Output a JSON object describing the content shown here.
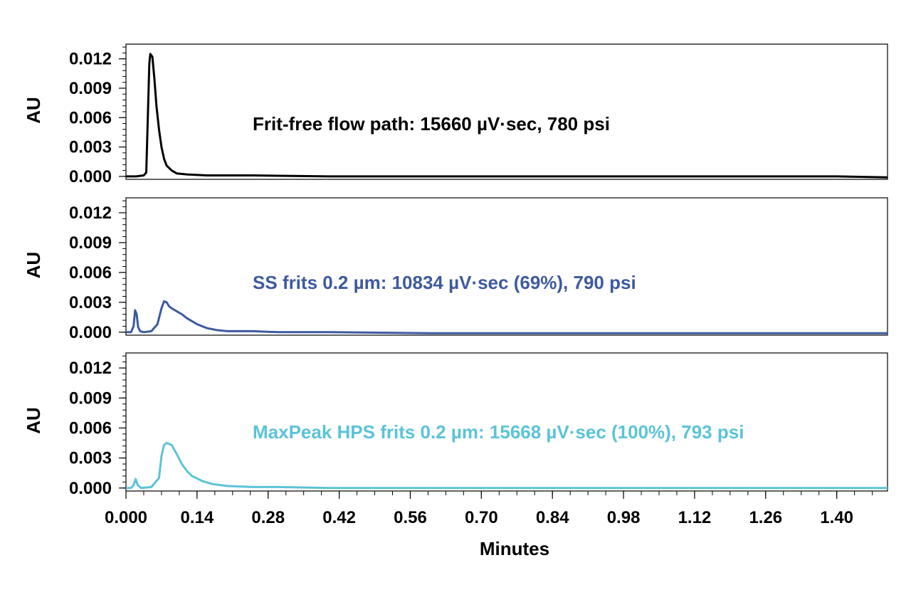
{
  "chart_data": {
    "type": "line",
    "xlabel": "Minutes",
    "xlim": [
      0.0,
      1.5
    ],
    "x_ticks": [
      "0.000",
      "0.14",
      "0.28",
      "0.42",
      "0.56",
      "0.70",
      "0.84",
      "0.98",
      "1.12",
      "1.26",
      "1.40"
    ],
    "x_tick_values": [
      0.0,
      0.14,
      0.28,
      0.42,
      0.56,
      0.7,
      0.84,
      0.98,
      1.12,
      1.26,
      1.4
    ],
    "panels": [
      {
        "ylabel": "AU",
        "ylim": [
          -0.0003,
          0.0135
        ],
        "y_ticks": [
          "0.012",
          "0.009",
          "0.006",
          "0.003",
          "0.000"
        ],
        "y_tick_values": [
          0.012,
          0.009,
          0.006,
          0.003,
          0.0
        ],
        "annotation": "Frit-free flow path: 15660 µV·sec, 780 psi",
        "color": "#000000",
        "x": [
          0.0,
          0.02,
          0.035,
          0.04,
          0.043,
          0.046,
          0.048,
          0.052,
          0.056,
          0.06,
          0.065,
          0.07,
          0.075,
          0.08,
          0.09,
          0.1,
          0.12,
          0.16,
          0.25,
          0.4,
          0.6,
          0.8,
          1.0,
          1.2,
          1.4,
          1.5
        ],
        "y": [
          0.0,
          0.0,
          0.0001,
          0.0004,
          0.006,
          0.0115,
          0.0125,
          0.0122,
          0.01,
          0.0072,
          0.0048,
          0.003,
          0.0018,
          0.0011,
          0.0006,
          0.0003,
          0.0002,
          0.0001,
          0.0001,
          0.0,
          0.0,
          0.0,
          0.0,
          0.0,
          0.0,
          -0.0001
        ]
      },
      {
        "ylabel": "AU",
        "ylim": [
          -0.0003,
          0.0135
        ],
        "y_ticks": [
          "0.012",
          "0.009",
          "0.006",
          "0.003",
          "0.000"
        ],
        "y_tick_values": [
          0.012,
          0.009,
          0.006,
          0.003,
          0.0
        ],
        "annotation": "SS frits 0.2 µm: 10834 µV·sec (69%), 790 psi",
        "color": "#3d5aa0",
        "x": [
          0.0,
          0.01,
          0.015,
          0.018,
          0.021,
          0.024,
          0.028,
          0.035,
          0.05,
          0.062,
          0.07,
          0.075,
          0.08,
          0.085,
          0.09,
          0.1,
          0.11,
          0.12,
          0.14,
          0.16,
          0.18,
          0.2,
          0.25,
          0.3,
          0.4,
          0.6,
          0.8,
          1.0,
          1.2,
          1.4,
          1.5
        ],
        "y": [
          0.0,
          0.0,
          0.0006,
          0.0022,
          0.0018,
          0.0005,
          0.0001,
          0.0,
          0.0001,
          0.0008,
          0.0024,
          0.0031,
          0.003,
          0.0026,
          0.0024,
          0.0021,
          0.0018,
          0.0014,
          0.0008,
          0.0004,
          0.0002,
          0.0001,
          0.0001,
          0.0,
          0.0,
          -0.0001,
          -0.0001,
          -0.0001,
          -0.0001,
          -0.0001,
          -0.0001
        ]
      },
      {
        "ylabel": "AU",
        "ylim": [
          -0.0003,
          0.0135
        ],
        "y_ticks": [
          "0.012",
          "0.009",
          "0.006",
          "0.003",
          "0.000"
        ],
        "y_tick_values": [
          0.012,
          0.009,
          0.006,
          0.003,
          0.0
        ],
        "annotation": "MaxPeak HPS frits 0.2 µm: 15668 µV·sec (100%), 793 psi",
        "color": "#5bc3d8",
        "x": [
          0.0,
          0.01,
          0.015,
          0.019,
          0.023,
          0.03,
          0.05,
          0.065,
          0.07,
          0.075,
          0.08,
          0.09,
          0.1,
          0.11,
          0.12,
          0.13,
          0.15,
          0.17,
          0.2,
          0.25,
          0.3,
          0.4,
          0.6,
          0.8,
          1.0,
          1.2,
          1.4,
          1.5
        ],
        "y": [
          0.0,
          0.0,
          0.0003,
          0.0009,
          0.0003,
          0.0,
          0.0001,
          0.001,
          0.0032,
          0.0043,
          0.0045,
          0.0043,
          0.0034,
          0.0024,
          0.0017,
          0.0012,
          0.0007,
          0.0004,
          0.0002,
          0.0001,
          0.0001,
          0.0,
          0.0,
          0.0,
          0.0,
          0.0,
          0.0,
          0.0
        ]
      }
    ]
  }
}
